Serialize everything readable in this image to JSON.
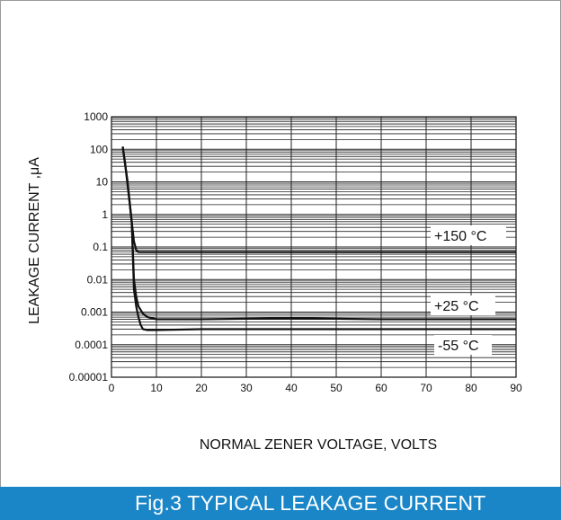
{
  "chart_data": {
    "type": "line",
    "title": "",
    "xlabel": "NORMAL ZENER VOLTAGE, VOLTS",
    "ylabel": "LEAKAGE CURRENT ,μA",
    "xlim": [
      0,
      90
    ],
    "ylim": [
      1e-05,
      1000
    ],
    "y_scale": "log",
    "grid": true,
    "x_ticks": [
      "0",
      "10",
      "20",
      "30",
      "40",
      "50",
      "60",
      "70",
      "80",
      "90"
    ],
    "y_ticks": [
      "0.00001",
      "0.0001",
      "0.001",
      "0.01",
      "0.1",
      "1",
      "10",
      "100",
      "1000"
    ],
    "series": [
      {
        "name": "+150 °C",
        "x": [
          2.5,
          3.0,
          3.5,
          4.0,
          4.5,
          5.0,
          5.5,
          6.0,
          8.0,
          20,
          40,
          60,
          90
        ],
        "y": [
          120,
          40,
          10,
          2.5,
          0.6,
          0.15,
          0.08,
          0.07,
          0.07,
          0.07,
          0.07,
          0.07,
          0.07
        ]
      },
      {
        "name": "+25 °C",
        "x": [
          2.5,
          3.5,
          4.5,
          5.0,
          5.5,
          6.0,
          7.0,
          8.0,
          10,
          20,
          40,
          60,
          90
        ],
        "y": [
          120,
          12,
          0.6,
          0.01,
          0.003,
          0.0015,
          0.0009,
          0.0007,
          0.0006,
          0.0006,
          0.00065,
          0.0006,
          0.0006
        ]
      },
      {
        "name": "-55 °C",
        "x": [
          2.5,
          3.5,
          4.5,
          5.0,
          5.5,
          6.0,
          6.5,
          7.0,
          8.0,
          10,
          20,
          40,
          60,
          90
        ],
        "y": [
          120,
          12,
          0.6,
          0.005,
          0.0015,
          0.0007,
          0.0004,
          0.0003,
          0.00028,
          0.00028,
          0.0003,
          0.0003,
          0.0003,
          0.0003
        ]
      }
    ],
    "curve_labels": [
      "+150 °C",
      "+25 °C",
      "-55 °C"
    ]
  },
  "caption": "Fig.3 TYPICAL LEAKAGE CURRENT",
  "colors": {
    "caption_bg": "#1a86c7",
    "grid": "#222222",
    "curve": "#111111"
  }
}
